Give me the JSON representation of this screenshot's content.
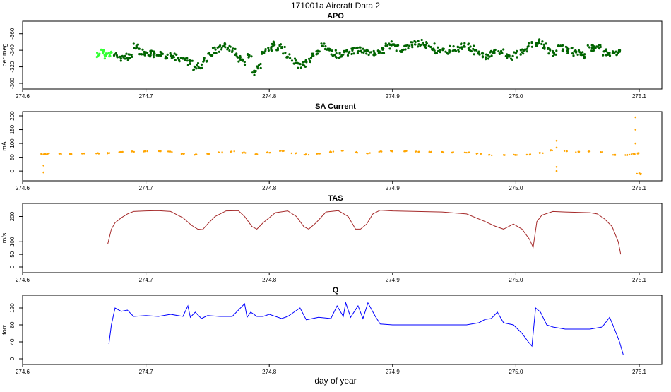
{
  "figure": {
    "title": "171001a   Aircraft Data 2",
    "xlabel": "day of year"
  },
  "chart_data": [
    {
      "type": "scatter",
      "title": "APO",
      "ylabel": "per meg",
      "xlim": [
        274.6,
        275.1
      ],
      "ylim": [
        -300,
        -370
      ],
      "yticks": [
        -300,
        -320,
        -340,
        -360
      ],
      "xticks": [
        274.6,
        274.7,
        274.8,
        274.9,
        275.0,
        275.1
      ],
      "grid": false,
      "colors": {
        "dark": "#006400",
        "light": "#33ff33"
      },
      "series": [
        {
          "x": [
            274.662,
            274.665,
            274.668,
            274.672,
            274.676,
            274.68,
            274.684,
            274.688,
            274.692,
            274.696,
            274.7,
            274.704,
            274.708,
            274.712,
            274.716,
            274.72,
            274.724,
            274.728,
            274.732,
            274.736,
            274.74,
            274.744,
            274.748,
            274.752,
            274.756,
            274.76,
            274.764,
            274.768,
            274.772,
            274.776,
            274.78,
            274.784,
            274.788,
            274.792,
            274.796,
            274.8,
            274.804,
            274.808,
            274.812,
            274.816,
            274.82,
            274.824,
            274.828,
            274.832,
            274.836,
            274.84,
            274.844,
            274.848,
            274.852,
            274.856,
            274.86,
            274.864,
            274.868,
            274.872,
            274.876,
            274.88,
            274.884,
            274.888,
            274.892,
            274.896,
            274.9,
            274.904,
            274.908,
            274.912,
            274.916,
            274.92,
            274.924,
            274.928,
            274.932,
            274.936,
            274.94,
            274.944,
            274.948,
            274.952,
            274.956,
            274.96,
            274.964,
            274.968,
            274.972,
            274.976,
            274.98,
            274.984,
            274.988,
            274.992,
            274.996,
            275.0,
            275.004,
            275.008,
            275.012,
            275.016,
            275.02,
            275.024,
            275.028,
            275.032,
            275.036,
            275.04,
            275.044,
            275.048,
            275.052,
            275.056,
            275.06,
            275.064,
            275.068,
            275.072,
            275.076,
            275.08,
            275.084
          ],
          "y": [
            -335,
            -337,
            -334,
            -336,
            -333,
            -330,
            -332,
            -334,
            -345,
            -338,
            -334,
            -336,
            -335,
            -337,
            -334,
            -333,
            -332,
            -330,
            -328,
            -324,
            -318,
            -322,
            -328,
            -335,
            -340,
            -342,
            -345,
            -341,
            -338,
            -330,
            -326,
            -334,
            -313,
            -320,
            -338,
            -342,
            -347,
            -344,
            -340,
            -332,
            -326,
            -322,
            -324,
            -328,
            -333,
            -336,
            -345,
            -343,
            -336,
            -334,
            -335,
            -337,
            -339,
            -340,
            -341,
            -338,
            -336,
            -337,
            -340,
            -344,
            -347,
            -343,
            -342,
            -344,
            -347,
            -348,
            -349,
            -346,
            -344,
            -340,
            -338,
            -339,
            -341,
            -342,
            -344,
            -345,
            -342,
            -338,
            -334,
            -332,
            -335,
            -337,
            -339,
            -333,
            -330,
            -335,
            -337,
            -342,
            -346,
            -349,
            -350,
            -345,
            -339,
            -336,
            -343,
            -341,
            -339,
            -337,
            -336,
            -334,
            -342,
            -343,
            -344,
            -338,
            -336,
            -336,
            -337
          ],
          "lightIdx": [
            0,
            1,
            2,
            3
          ]
        }
      ]
    },
    {
      "type": "scatter",
      "title": "SA Current",
      "ylabel": "mA",
      "xlim": [
        274.6,
        275.1
      ],
      "ylim": [
        -15,
        200
      ],
      "yticks": [
        0,
        50,
        100,
        150,
        200
      ],
      "xticks": [
        274.6,
        274.7,
        274.8,
        274.9,
        275.0,
        275.1
      ],
      "grid": false,
      "color": "#ffa500",
      "series": [
        {
          "x": [
            274.617,
            274.62,
            274.63,
            274.64,
            274.65,
            274.66,
            274.67,
            274.68,
            274.69,
            274.7,
            274.71,
            274.72,
            274.73,
            274.74,
            274.75,
            274.76,
            274.77,
            274.78,
            274.79,
            274.8,
            274.81,
            274.82,
            274.83,
            274.84,
            274.85,
            274.86,
            274.87,
            274.88,
            274.89,
            274.9,
            274.91,
            274.92,
            274.93,
            274.94,
            274.95,
            274.96,
            274.97,
            274.98,
            274.99,
            275.0,
            275.01,
            275.02,
            275.03,
            275.04,
            275.05,
            275.06,
            275.07,
            275.08,
            275.09,
            275.095,
            275.098,
            275.1
          ],
          "y": [
            62,
            63,
            63,
            63,
            63,
            64,
            65,
            68,
            70,
            72,
            72,
            70,
            62,
            60,
            63,
            67,
            70,
            67,
            62,
            68,
            72,
            65,
            60,
            63,
            70,
            73,
            68,
            65,
            70,
            72,
            71,
            70,
            69,
            68,
            68,
            67,
            63,
            58,
            58,
            59,
            60,
            65,
            75,
            73,
            70,
            70,
            68,
            58,
            58,
            62,
            64,
            -10
          ],
          "outliers": [
            {
              "x": 274.617,
              "y": 20
            },
            {
              "x": 274.617,
              "y": -5
            },
            {
              "x": 275.033,
              "y": 110
            },
            {
              "x": 275.033,
              "y": 85
            },
            {
              "x": 275.033,
              "y": 0
            },
            {
              "x": 275.033,
              "y": 15
            },
            {
              "x": 275.097,
              "y": 195
            },
            {
              "x": 275.097,
              "y": 150
            },
            {
              "x": 275.097,
              "y": 100
            },
            {
              "x": 275.1,
              "y": -8
            },
            {
              "x": 275.101,
              "y": -12
            }
          ]
        }
      ]
    },
    {
      "type": "line",
      "title": "TAS",
      "ylabel": "m/s",
      "xlim": [
        274.6,
        275.1
      ],
      "ylim": [
        0,
        235
      ],
      "yticks": [
        0,
        50,
        100,
        200
      ],
      "xticks": [
        274.6,
        274.7,
        274.8,
        274.9,
        275.0,
        275.1
      ],
      "grid": false,
      "color": "#a52a2a",
      "series": [
        {
          "x": [
            274.669,
            274.672,
            274.675,
            274.68,
            274.685,
            274.69,
            274.7,
            274.71,
            274.72,
            274.73,
            274.737,
            274.742,
            274.746,
            274.75,
            274.756,
            274.765,
            274.775,
            274.78,
            274.786,
            274.79,
            274.795,
            274.805,
            274.815,
            274.822,
            274.828,
            274.832,
            274.838,
            274.846,
            274.856,
            274.864,
            274.87,
            274.874,
            274.879,
            274.884,
            274.89,
            274.9,
            274.92,
            274.94,
            274.96,
            274.975,
            274.983,
            274.99,
            274.998,
            275.005,
            275.011,
            275.014,
            275.017,
            275.021,
            275.03,
            275.04,
            275.06,
            275.066,
            275.072,
            275.078,
            275.083,
            275.085
          ],
          "y": [
            90,
            150,
            175,
            195,
            210,
            220,
            222,
            223,
            220,
            195,
            165,
            150,
            148,
            170,
            200,
            222,
            223,
            200,
            160,
            150,
            175,
            215,
            222,
            200,
            160,
            150,
            175,
            218,
            223,
            200,
            150,
            150,
            170,
            210,
            225,
            222,
            220,
            218,
            210,
            180,
            162,
            150,
            170,
            150,
            110,
            78,
            180,
            205,
            220,
            218,
            215,
            210,
            190,
            160,
            100,
            50
          ]
        }
      ]
    },
    {
      "type": "line",
      "title": "Q",
      "ylabel": "torr",
      "xlim": [
        274.6,
        275.1
      ],
      "ylim": [
        0,
        140
      ],
      "yticks": [
        0,
        40,
        80,
        120
      ],
      "xticks": [
        274.6,
        274.7,
        274.8,
        274.9,
        275.0,
        275.1
      ],
      "grid": false,
      "color": "#0000ff",
      "series": [
        {
          "x": [
            274.67,
            274.672,
            274.675,
            274.68,
            274.685,
            274.69,
            274.7,
            274.71,
            274.72,
            274.73,
            274.734,
            274.736,
            274.74,
            274.745,
            274.75,
            274.76,
            274.77,
            274.78,
            274.782,
            274.785,
            274.79,
            274.795,
            274.8,
            274.81,
            274.815,
            274.82,
            274.825,
            274.83,
            274.84,
            274.85,
            274.855,
            274.86,
            274.862,
            274.866,
            274.872,
            274.876,
            274.88,
            274.886,
            274.89,
            274.9,
            274.92,
            274.94,
            274.96,
            274.97,
            274.975,
            274.98,
            274.985,
            274.99,
            274.998,
            275.005,
            275.01,
            275.013,
            275.016,
            275.02,
            275.025,
            275.03,
            275.04,
            275.06,
            275.07,
            275.076,
            275.08,
            275.084,
            275.087
          ],
          "y": [
            35,
            80,
            120,
            112,
            115,
            100,
            102,
            100,
            105,
            100,
            125,
            98,
            110,
            95,
            102,
            100,
            100,
            130,
            98,
            110,
            100,
            100,
            105,
            95,
            100,
            110,
            120,
            92,
            98,
            95,
            125,
            100,
            132,
            98,
            125,
            95,
            132,
            100,
            82,
            80,
            80,
            80,
            80,
            85,
            93,
            95,
            110,
            85,
            80,
            60,
            40,
            30,
            120,
            110,
            80,
            75,
            70,
            70,
            75,
            98,
            70,
            40,
            10
          ]
        }
      ]
    }
  ]
}
